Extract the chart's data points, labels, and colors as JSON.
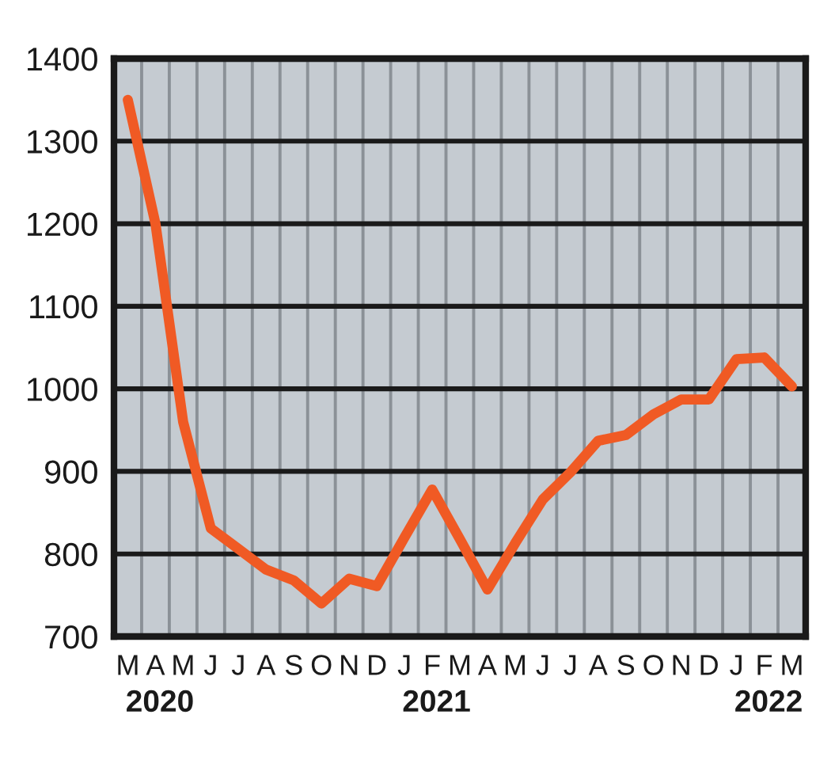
{
  "chart_data": {
    "type": "line",
    "categories": [
      "M",
      "A",
      "M",
      "J",
      "J",
      "A",
      "S",
      "O",
      "N",
      "D",
      "J",
      "F",
      "M",
      "A",
      "M",
      "J",
      "J",
      "A",
      "S",
      "O",
      "N",
      "D",
      "J",
      "F",
      "M"
    ],
    "series": [
      {
        "color": "#f05a24",
        "values": [
          1350,
          1200,
          960,
          831,
          806,
          781,
          768,
          740,
          770,
          761,
          820,
          878,
          818,
          757,
          813,
          866,
          899,
          937,
          944,
          969,
          987,
          987,
          1036,
          1038,
          1003
        ]
      }
    ],
    "ylim": [
      700,
      1400
    ],
    "yticks": [
      700,
      800,
      900,
      1000,
      1100,
      1200,
      1300,
      1400
    ],
    "annotations": [
      "2020",
      "2021",
      "2022"
    ],
    "grid": true
  }
}
